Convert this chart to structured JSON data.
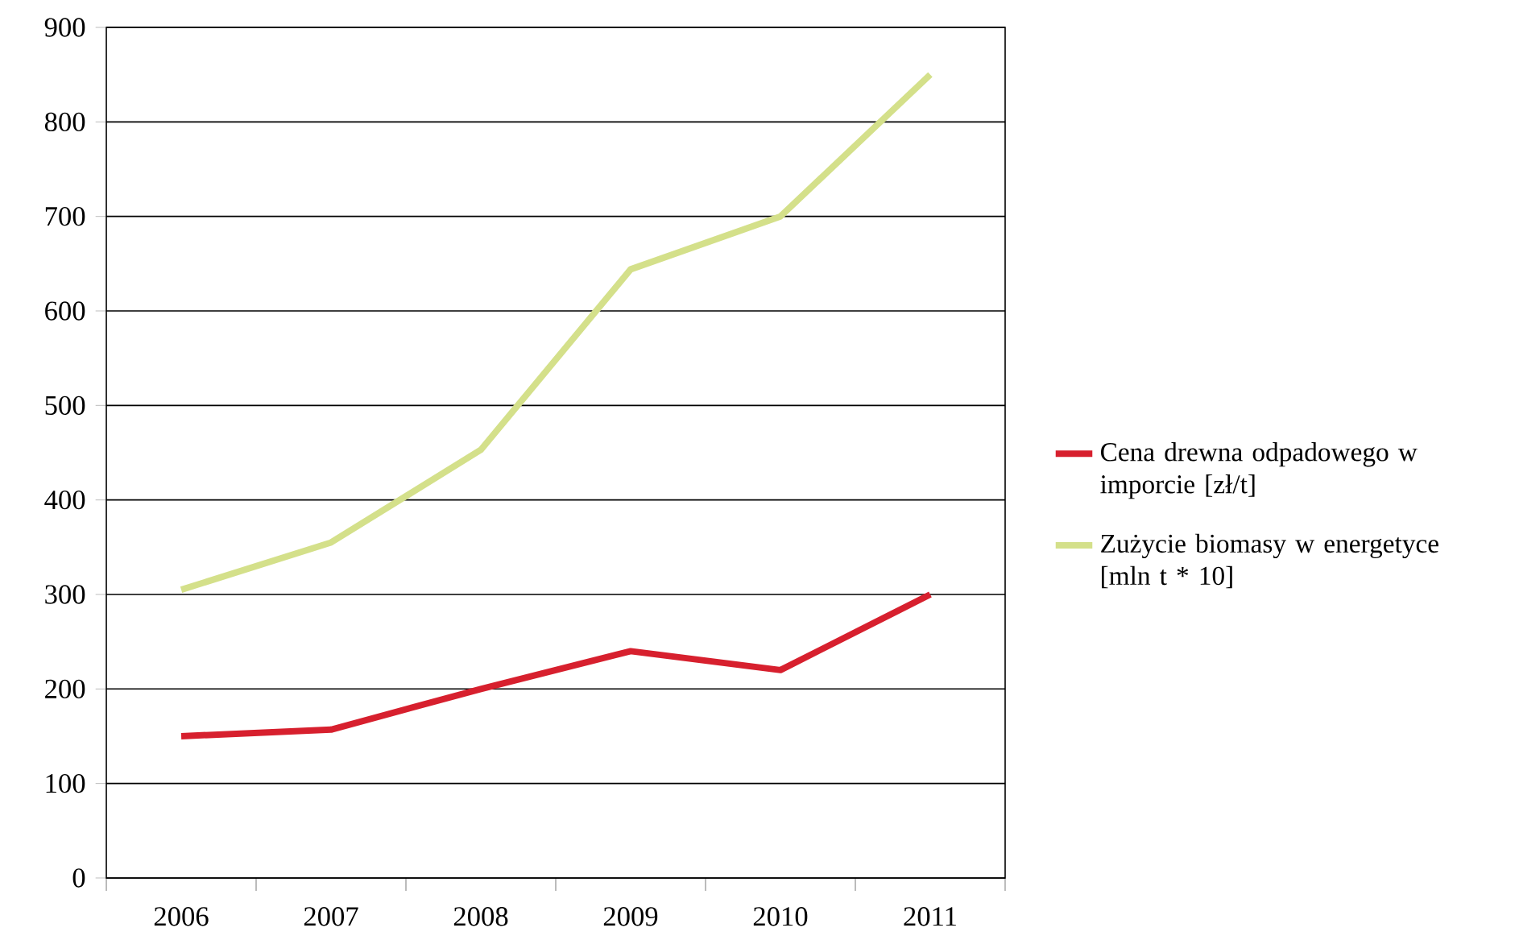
{
  "chart_data": {
    "type": "line",
    "categories": [
      "2006",
      "2007",
      "2008",
      "2009",
      "2010",
      "2011"
    ],
    "series": [
      {
        "name": "Cena drewna odpadowego w imporcie [zł/t]",
        "color": "#d7202e",
        "values": [
          150,
          157,
          200,
          240,
          220,
          300
        ]
      },
      {
        "name": "Zużycie biomasy w energetyce [mln t * 10]",
        "color": "#d4e08a",
        "values": [
          305,
          355,
          453,
          644,
          700,
          850
        ]
      }
    ],
    "ylim": [
      0,
      900
    ],
    "yticks": [
      0,
      100,
      200,
      300,
      400,
      500,
      600,
      700,
      800,
      900
    ],
    "grid": "y",
    "legend": "right"
  }
}
